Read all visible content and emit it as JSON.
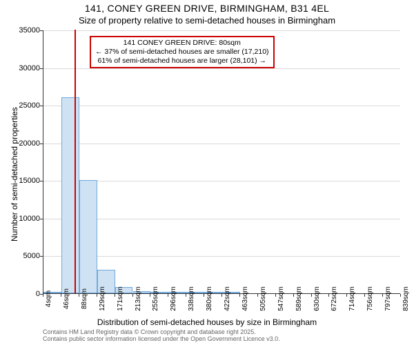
{
  "title": {
    "main": "141, CONEY GREEN DRIVE, BIRMINGHAM, B31 4EL",
    "sub": "Size of property relative to semi-detached houses in Birmingham",
    "main_fontsize": 14,
    "sub_fontsize": 13
  },
  "chart": {
    "type": "histogram",
    "background_color": "#ffffff",
    "grid_color": "#d9d9d9",
    "axis_color": "#333333",
    "bar_fill": "#cfe2f3",
    "bar_stroke": "#6fa8dc",
    "bar_stroke_width": 1,
    "marker_line_color": "#cc0000",
    "marker_line_width": 2,
    "annotation_border_color": "#cc0000",
    "x": {
      "title": "Distribution of semi-detached houses by size in Birmingham",
      "title_fontsize": 12,
      "bins_start": 4,
      "bins_end": 880,
      "bins_step": 42,
      "tick_labels": [
        "4sqm",
        "46sqm",
        "88sqm",
        "129sqm",
        "171sqm",
        "213sqm",
        "255sqm",
        "296sqm",
        "338sqm",
        "380sqm",
        "422sqm",
        "463sqm",
        "505sqm",
        "547sqm",
        "589sqm",
        "630sqm",
        "672sqm",
        "714sqm",
        "756sqm",
        "797sqm",
        "839sqm"
      ],
      "tick_fontsize": 10
    },
    "y": {
      "title": "Number of semi-detached properties",
      "title_fontsize": 12,
      "min": 0,
      "max": 35000,
      "tick_step": 5000,
      "tick_labels": [
        "0",
        "5000",
        "10000",
        "15000",
        "20000",
        "25000",
        "30000",
        "35000"
      ],
      "tick_fontsize": 11
    },
    "bars": [
      {
        "bin": 0,
        "value": 50
      },
      {
        "bin": 1,
        "value": 26000
      },
      {
        "bin": 2,
        "value": 15000
      },
      {
        "bin": 3,
        "value": 3100
      },
      {
        "bin": 4,
        "value": 800
      },
      {
        "bin": 5,
        "value": 250
      },
      {
        "bin": 6,
        "value": 150
      },
      {
        "bin": 7,
        "value": 80
      },
      {
        "bin": 8,
        "value": 40
      },
      {
        "bin": 9,
        "value": 25
      },
      {
        "bin": 10,
        "value": 15
      }
    ],
    "marker": {
      "x_value": 80,
      "annotation_lines": [
        "141 CONEY GREEN DRIVE: 80sqm",
        "← 37% of semi-detached houses are smaller (17,210)",
        "61% of semi-detached houses are larger (28,101) →"
      ]
    }
  },
  "footer": {
    "line1": "Contains HM Land Registry data © Crown copyright and database right 2025.",
    "line2": "Contains public sector information licensed under the Open Government Licence v3.0.",
    "fontsize": 9,
    "color": "#666666"
  }
}
